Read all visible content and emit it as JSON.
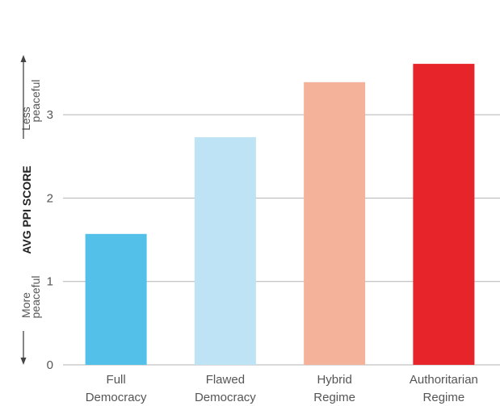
{
  "chart_data": {
    "type": "bar",
    "categories": [
      "Full Democracy",
      "Flawed Democracy",
      "Hybrid Regime",
      "Authoritarian Regime"
    ],
    "category_lines": [
      [
        "Full",
        "Democracy"
      ],
      [
        "Flawed",
        "Democracy"
      ],
      [
        "Hybrid",
        "Regime"
      ],
      [
        "Authoritarian",
        "Regime"
      ]
    ],
    "values": [
      1.57,
      2.73,
      3.39,
      3.61
    ],
    "colors": [
      "#52c0e8",
      "#bde3f4",
      "#f5b29a",
      "#e8242b"
    ],
    "title": "",
    "xlabel": "",
    "ylabel": "AVG PPI SCORE",
    "y_top_note": [
      "Less",
      "peaceful"
    ],
    "y_bottom_note": [
      "More",
      "peaceful"
    ],
    "ylim": [
      0,
      4
    ],
    "yticks": [
      0,
      1,
      2,
      3
    ],
    "grid": true,
    "gridline_color": "#b3b3b3"
  }
}
